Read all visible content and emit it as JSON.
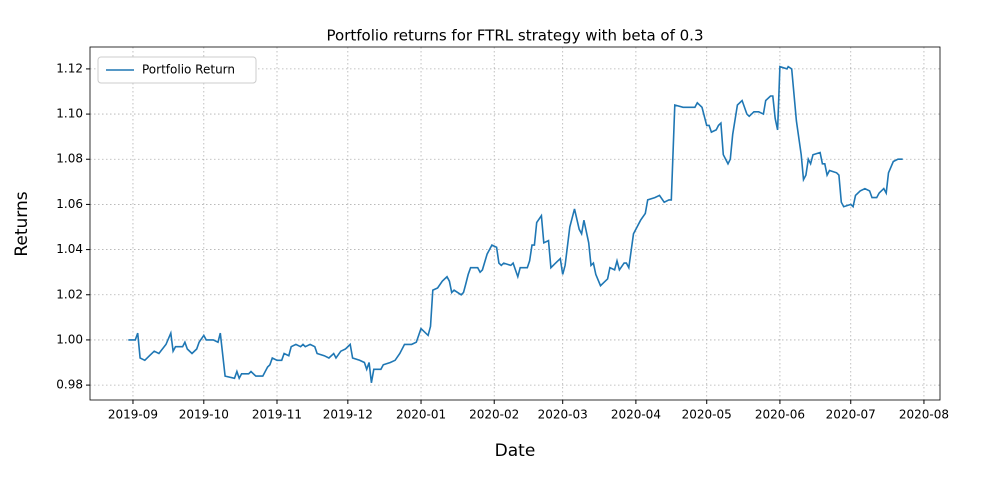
{
  "chart_data": {
    "type": "line",
    "title": "Portfolio returns for FTRL strategy with beta of 0.3",
    "x_label": "Date",
    "y_label": "Returns",
    "xlim": [
      -18.2,
      341.8
    ],
    "ylim": [
      0.9734,
      1.1297
    ],
    "xticks": [
      {
        "value": 0,
        "label": "2019-09"
      },
      {
        "value": 30,
        "label": "2019-10"
      },
      {
        "value": 61,
        "label": "2019-11"
      },
      {
        "value": 91,
        "label": "2019-12"
      },
      {
        "value": 122,
        "label": "2020-01"
      },
      {
        "value": 153,
        "label": "2020-02"
      },
      {
        "value": 182,
        "label": "2020-03"
      },
      {
        "value": 213,
        "label": "2020-04"
      },
      {
        "value": 243,
        "label": "2020-05"
      },
      {
        "value": 274,
        "label": "2020-06"
      },
      {
        "value": 304,
        "label": "2020-07"
      },
      {
        "value": 335,
        "label": "2020-08"
      }
    ],
    "yticks": [
      {
        "value": 0.98,
        "label": "0.98"
      },
      {
        "value": 1.0,
        "label": "1.00"
      },
      {
        "value": 1.02,
        "label": "1.02"
      },
      {
        "value": 1.04,
        "label": "1.04"
      },
      {
        "value": 1.06,
        "label": "1.06"
      },
      {
        "value": 1.08,
        "label": "1.08"
      },
      {
        "value": 1.1,
        "label": "1.10"
      },
      {
        "value": 1.12,
        "label": "1.12"
      }
    ],
    "grid": true,
    "legend": "upper left",
    "x": [
      -2,
      1,
      2,
      3,
      5,
      7,
      9,
      11,
      14,
      16,
      17,
      18,
      21,
      22,
      23,
      25,
      27,
      28,
      30,
      31,
      34,
      36,
      37,
      39,
      43,
      44,
      45,
      46,
      49,
      50,
      52,
      55,
      57,
      58,
      59,
      61,
      63,
      64,
      66,
      67,
      69,
      71,
      72,
      73,
      75,
      77,
      78,
      81,
      83,
      85,
      86,
      88,
      90,
      92,
      93,
      96,
      98,
      99,
      100,
      101,
      102,
      105,
      106,
      109,
      111,
      113,
      115,
      118,
      120,
      122,
      125,
      126,
      127,
      129,
      131,
      133,
      134,
      135,
      136,
      139,
      140,
      141,
      142,
      143,
      146,
      147,
      148,
      150,
      151,
      152,
      154,
      155,
      156,
      157,
      160,
      161,
      163,
      164,
      167,
      168,
      169,
      170,
      171,
      173,
      174,
      176,
      177,
      179,
      181,
      182,
      183,
      185,
      187,
      189,
      190,
      191,
      193,
      194,
      195,
      196,
      198,
      201,
      202,
      204,
      205,
      206,
      208,
      209,
      210,
      212,
      215,
      217,
      218,
      221,
      223,
      225,
      227,
      228,
      229.5,
      233,
      236,
      238,
      239,
      241,
      243,
      244,
      245,
      247,
      248,
      249,
      250,
      252,
      253,
      254,
      256,
      258,
      260,
      261,
      263,
      265,
      267,
      268,
      270,
      271,
      272,
      273,
      274,
      277,
      277.5,
      279,
      281,
      283,
      284,
      285,
      286,
      287,
      288,
      291,
      292,
      293,
      294,
      295,
      298,
      299,
      300,
      301,
      304,
      305,
      306,
      308,
      310,
      312,
      313,
      315,
      316,
      318,
      319,
      320,
      322,
      324,
      326
    ],
    "series": [
      {
        "name": "Portfolio Return",
        "color": "#1f77b4",
        "values": [
          1.0,
          1.0,
          1.003,
          0.992,
          0.991,
          0.993,
          0.995,
          0.994,
          0.998,
          1.003,
          0.995,
          0.997,
          0.997,
          0.999,
          0.996,
          0.994,
          0.996,
          0.999,
          1.002,
          1.0,
          1.0,
          0.999,
          1.003,
          0.984,
          0.983,
          0.986,
          0.983,
          0.985,
          0.985,
          0.986,
          0.984,
          0.984,
          0.988,
          0.989,
          0.992,
          0.991,
          0.991,
          0.994,
          0.993,
          0.997,
          0.998,
          0.997,
          0.998,
          0.997,
          0.998,
          0.997,
          0.994,
          0.993,
          0.992,
          0.994,
          0.992,
          0.995,
          0.996,
          0.998,
          0.992,
          0.991,
          0.99,
          0.987,
          0.99,
          0.981,
          0.987,
          0.987,
          0.989,
          0.99,
          0.991,
          0.994,
          0.998,
          0.998,
          0.999,
          1.005,
          1.002,
          1.006,
          1.022,
          1.023,
          1.026,
          1.028,
          1.026,
          1.021,
          1.022,
          1.02,
          1.021,
          1.025,
          1.029,
          1.032,
          1.032,
          1.03,
          1.031,
          1.038,
          1.04,
          1.042,
          1.041,
          1.034,
          1.033,
          1.034,
          1.033,
          1.034,
          1.028,
          1.032,
          1.032,
          1.035,
          1.042,
          1.042,
          1.052,
          1.055,
          1.043,
          1.044,
          1.032,
          1.034,
          1.036,
          1.029,
          1.033,
          1.05,
          1.058,
          1.049,
          1.047,
          1.053,
          1.043,
          1.033,
          1.034,
          1.029,
          1.024,
          1.027,
          1.032,
          1.031,
          1.035,
          1.031,
          1.034,
          1.034,
          1.032,
          1.047,
          1.053,
          1.056,
          1.062,
          1.063,
          1.064,
          1.061,
          1.062,
          1.062,
          1.104,
          1.103,
          1.103,
          1.103,
          1.105,
          1.103,
          1.095,
          1.095,
          1.092,
          1.093,
          1.095,
          1.096,
          1.082,
          1.078,
          1.08,
          1.091,
          1.104,
          1.106,
          1.1,
          1.099,
          1.101,
          1.101,
          1.1,
          1.106,
          1.108,
          1.108,
          1.098,
          1.093,
          1.121,
          1.12,
          1.121,
          1.12,
          1.097,
          1.082,
          1.071,
          1.073,
          1.08,
          1.078,
          1.082,
          1.083,
          1.078,
          1.078,
          1.073,
          1.075,
          1.074,
          1.073,
          1.061,
          1.059,
          1.06,
          1.059,
          1.064,
          1.066,
          1.067,
          1.066,
          1.063,
          1.063,
          1.065,
          1.067,
          1.065,
          1.074,
          1.079,
          1.08,
          1.08
        ]
      }
    ]
  }
}
